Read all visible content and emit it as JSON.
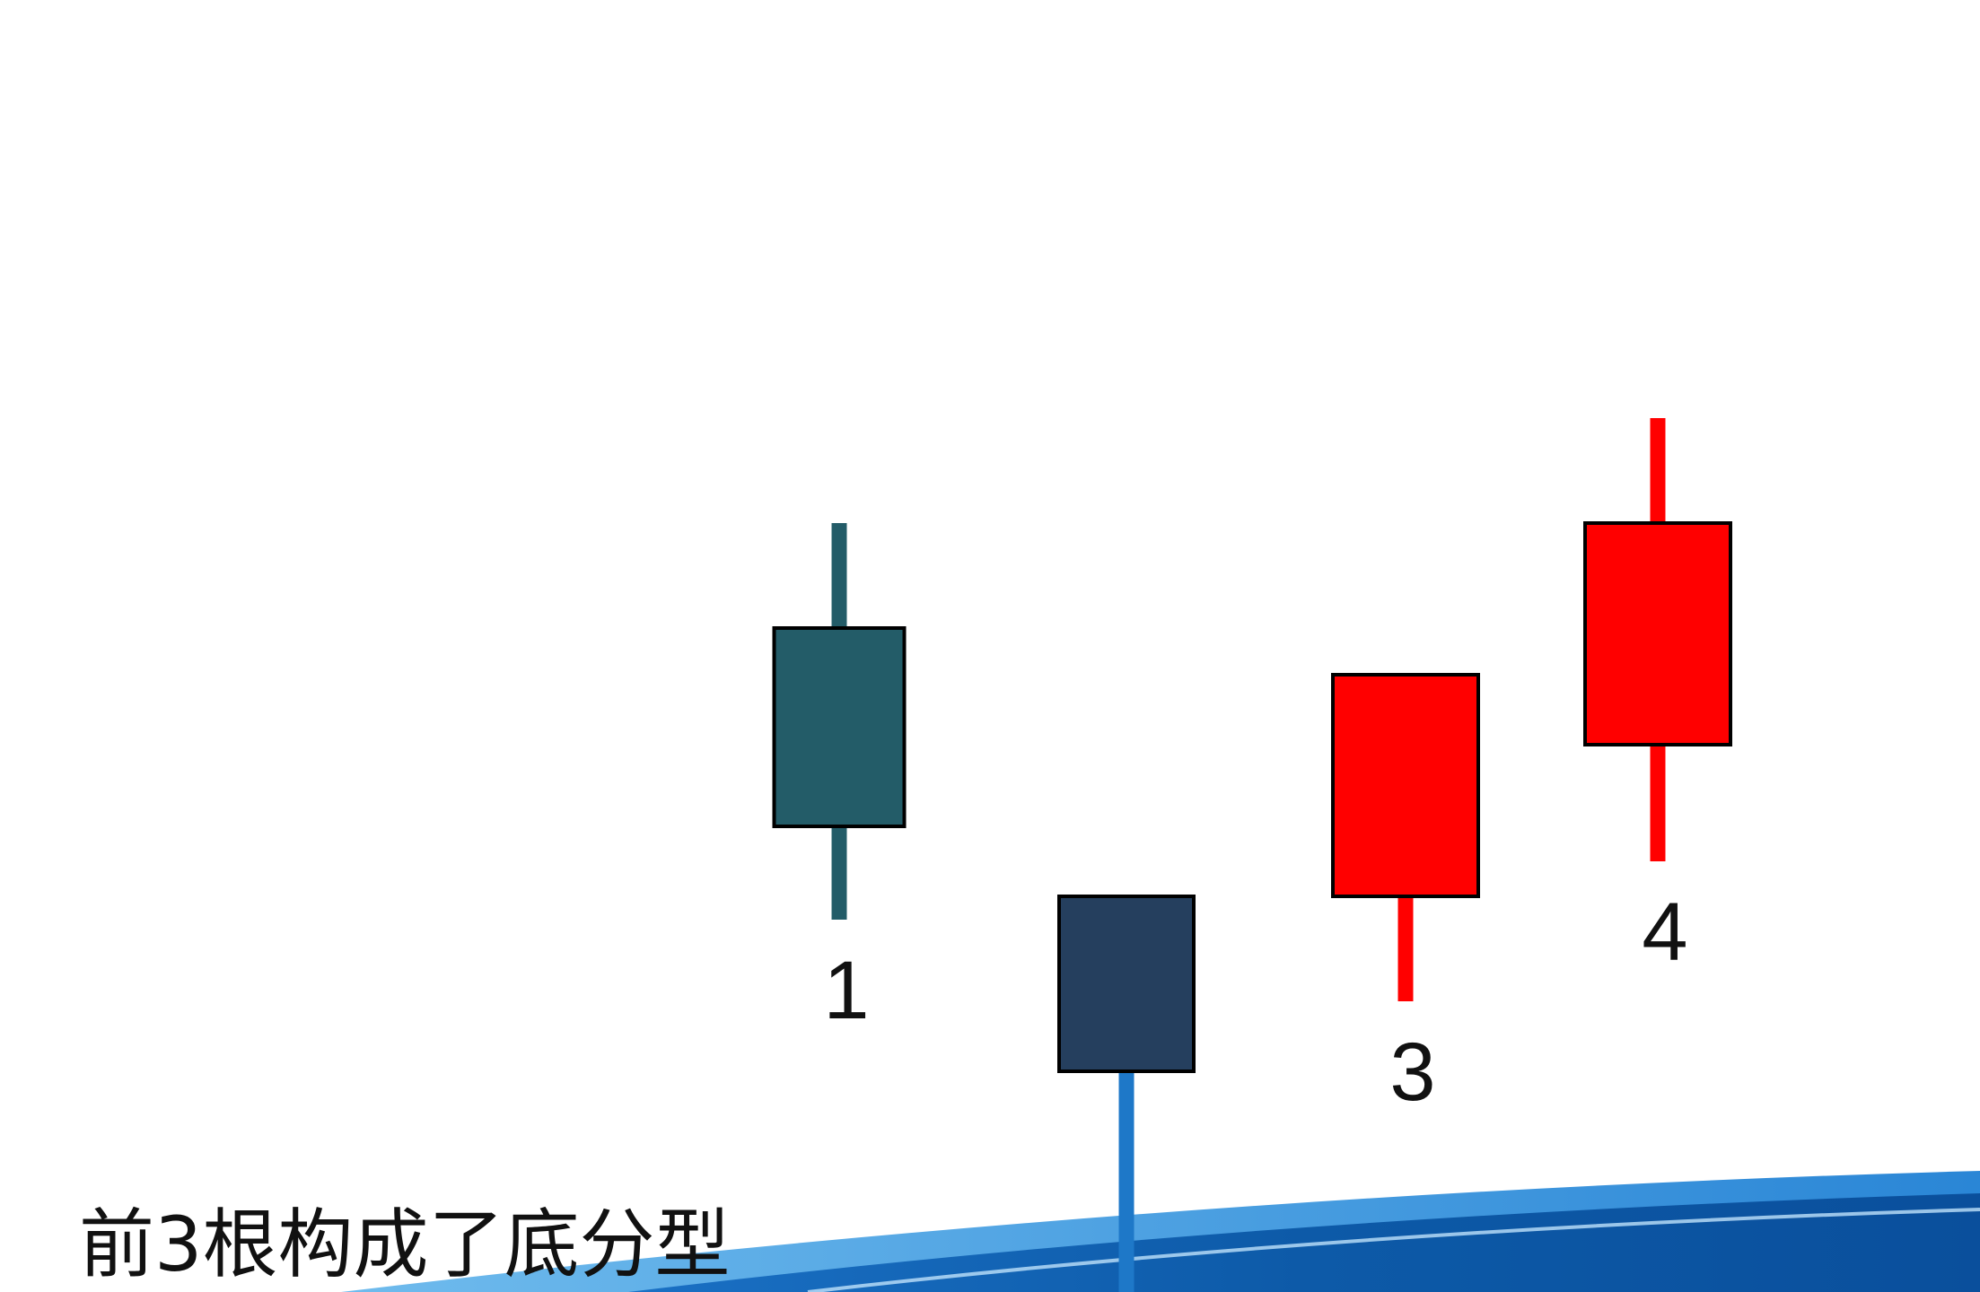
{
  "chart_data": {
    "type": "candlestick",
    "title": "",
    "xlabel": "",
    "ylabel": "",
    "ylim": [
      0,
      100
    ],
    "candles": [
      {
        "label": "1",
        "open": 60,
        "close": 43,
        "high": 69,
        "low": 35,
        "color": "#235C68"
      },
      {
        "label": "",
        "open": 37,
        "close": 22,
        "high": null,
        "low": null,
        "color": "#253F5E",
        "wick_color": "#1E78C8"
      },
      {
        "label": "3",
        "open": 37,
        "close": 56,
        "high": null,
        "low": 28,
        "color": "#FF0000"
      },
      {
        "label": "4",
        "open": 50,
        "close": 69,
        "high": 78,
        "low": 40,
        "color": "#FF0000"
      }
    ]
  },
  "caption": "前3根构成了底分型",
  "banner": {
    "colors": [
      "#0B4F9C",
      "#1E7BD0",
      "#5FB0EA"
    ]
  }
}
